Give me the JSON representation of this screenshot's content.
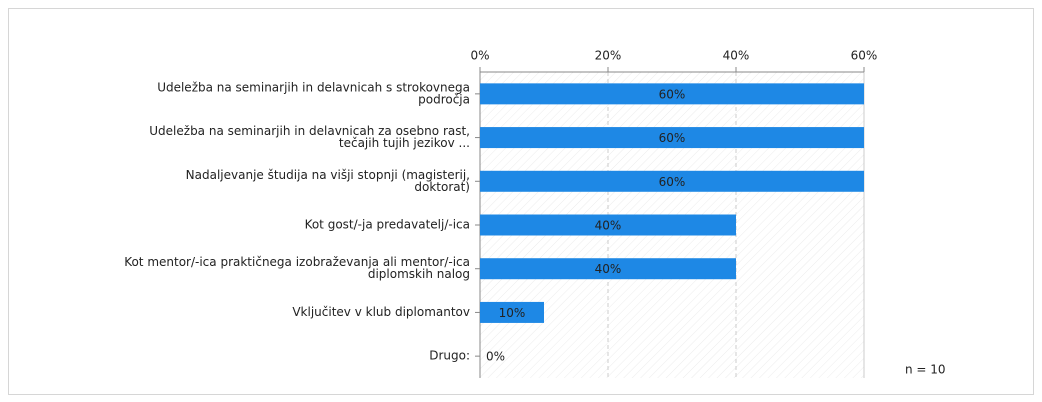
{
  "chart_data": {
    "type": "bar",
    "orientation": "horizontal",
    "categories": [
      [
        "Udeležba na seminarjih in delavnicah s strokovnega",
        "področja"
      ],
      [
        "Udeležba na seminarjih in delavnicah za osebno rast,",
        "tečajih tujih jezikov ..."
      ],
      [
        "Nadaljevanje študija na višji stopnji (magisterij,",
        "doktorat)"
      ],
      [
        "Kot gost/-ja predavatelj/-ica"
      ],
      [
        "Kot mentor/-ica praktičnega izobraževanja ali mentor/-ica",
        "diplomskih nalog"
      ],
      [
        "Vključitev v klub diplomantov"
      ],
      [
        "Drugo:"
      ]
    ],
    "values": [
      60,
      60,
      60,
      40,
      40,
      10,
      0
    ],
    "value_labels": [
      "60%",
      "60%",
      "60%",
      "40%",
      "40%",
      "10%",
      "0%"
    ],
    "color": "#1e88e5",
    "xlim": [
      0,
      60
    ],
    "xticks": [
      {
        "value": 0,
        "label": "0%"
      },
      {
        "value": 20,
        "label": "20%"
      },
      {
        "value": 40,
        "label": "40%"
      },
      {
        "value": 60,
        "label": "60%"
      }
    ],
    "grid": true,
    "annotation": "n = 10"
  }
}
